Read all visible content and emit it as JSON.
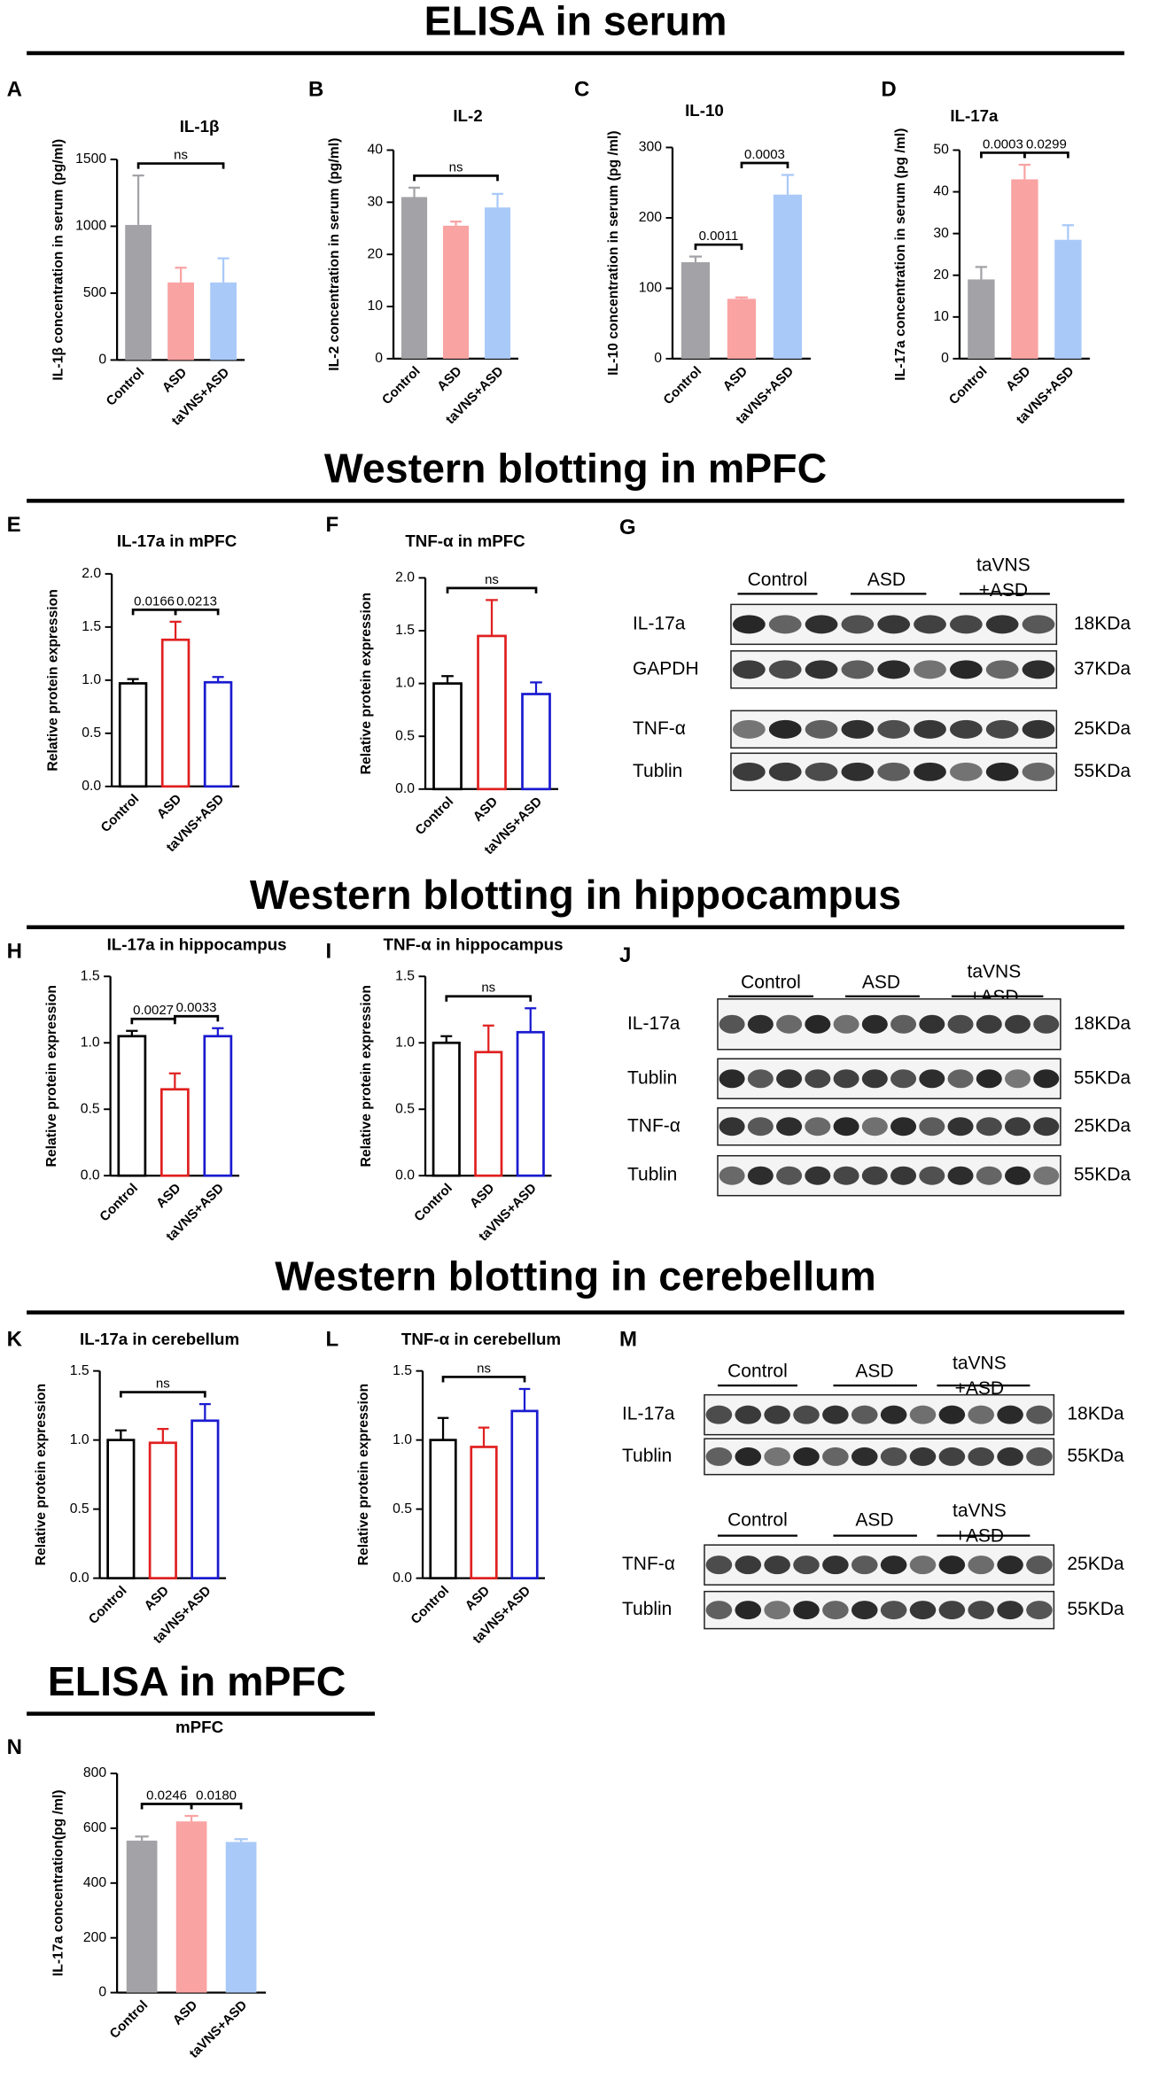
{
  "sections": [
    "ELISA in serum",
    "Western blotting in mPFC",
    "Western blotting in hippocampus",
    "Western blotting in cerebellum",
    "ELISA in mPFC"
  ],
  "chart_data": [
    {
      "type": "bar",
      "letter": "A",
      "title": "IL-1β",
      "y_label": "IL-1β concentration in serum (pg/ml)",
      "style": "filled",
      "categories": [
        "Control",
        "ASD",
        "taVNS+ASD"
      ],
      "values": [
        1010,
        580,
        580
      ],
      "errors": [
        370,
        110,
        180
      ],
      "colors": [
        "#a3a3a7",
        "#f9a3a3",
        "#a9c9f8"
      ],
      "ylim": [
        0,
        1500
      ],
      "yticks": [
        0,
        500,
        1000,
        1500
      ],
      "comparisons": [
        {
          "from": 0,
          "to": 2,
          "label": "ns"
        }
      ]
    },
    {
      "type": "bar",
      "letter": "B",
      "title": "IL-2",
      "y_label": "IL-2 concentration in serum (pg/ml)",
      "style": "filled",
      "categories": [
        "Control",
        "ASD",
        "taVNS+ASD"
      ],
      "values": [
        31,
        25.5,
        29
      ],
      "errors": [
        1.8,
        0.8,
        2.6
      ],
      "colors": [
        "#a3a3a7",
        "#f9a3a3",
        "#a9c9f8"
      ],
      "ylim": [
        0,
        40
      ],
      "yticks": [
        0,
        10,
        20,
        30,
        40
      ],
      "comparisons": [
        {
          "from": 0,
          "to": 2,
          "label": "ns"
        }
      ]
    },
    {
      "type": "bar",
      "letter": "C",
      "title": "IL-10",
      "y_label": "IL-10 concentration in serum (pg /ml)",
      "style": "filled",
      "categories": [
        "Control",
        "ASD",
        "taVNS+ASD"
      ],
      "values": [
        137,
        85,
        233
      ],
      "errors": [
        8,
        2,
        28
      ],
      "colors": [
        "#a3a3a7",
        "#f9a3a3",
        "#a9c9f8"
      ],
      "ylim": [
        0,
        300
      ],
      "yticks": [
        0,
        100,
        200,
        300
      ],
      "comparisons": [
        {
          "from": 0,
          "to": 1,
          "label": "0.0011"
        },
        {
          "from": 1,
          "to": 2,
          "label": "0.0003"
        }
      ]
    },
    {
      "type": "bar",
      "letter": "D",
      "title": "IL-17a",
      "y_label": "IL-17a concentration in serum (pg /ml)",
      "style": "filled",
      "categories": [
        "Control",
        "ASD",
        "taVNS+ASD"
      ],
      "values": [
        19,
        43,
        28.5
      ],
      "errors": [
        3,
        3.5,
        3.5
      ],
      "colors": [
        "#a3a3a7",
        "#f9a3a3",
        "#a9c9f8"
      ],
      "ylim": [
        0,
        50
      ],
      "yticks": [
        0,
        10,
        20,
        30,
        40,
        50
      ],
      "comparisons": [
        {
          "from": 0,
          "to": 1,
          "label": "0.0003"
        },
        {
          "from": 1,
          "to": 2,
          "label": "0.0299"
        }
      ]
    },
    {
      "type": "bar",
      "letter": "E",
      "title": "IL-17a in mPFC",
      "y_label": "Relative protein expression",
      "style": "outline",
      "categories": [
        "Control",
        "ASD",
        "taVNS+ASD"
      ],
      "values": [
        0.97,
        1.38,
        0.98
      ],
      "errors": [
        0.04,
        0.17,
        0.05
      ],
      "colors": [
        "#000000",
        "#e02020",
        "#1a1ad0"
      ],
      "ylim": [
        0,
        2
      ],
      "yticks": [
        {
          "value": 0,
          "label": "0.0"
        },
        0.5,
        {
          "value": 1,
          "label": "1.0"
        },
        1.5,
        {
          "value": 2,
          "label": "2.0"
        }
      ],
      "comparisons": [
        {
          "from": 0,
          "to": 1,
          "label": "0.0166"
        },
        {
          "from": 1,
          "to": 2,
          "label": "0.0213"
        }
      ]
    },
    {
      "type": "bar",
      "letter": "F",
      "title": "TNF-α in mPFC",
      "y_label": "Relative protein expression",
      "style": "outline",
      "categories": [
        "Control",
        "ASD",
        "taVNS+ASD"
      ],
      "values": [
        1.0,
        1.45,
        0.9
      ],
      "errors": [
        0.07,
        0.34,
        0.11
      ],
      "colors": [
        "#000000",
        "#e02020",
        "#1a1ad0"
      ],
      "ylim": [
        0,
        2
      ],
      "yticks": [
        {
          "value": 0,
          "label": "0.0"
        },
        0.5,
        {
          "value": 1,
          "label": "1.0"
        },
        1.5,
        {
          "value": 2,
          "label": "2.0"
        }
      ],
      "comparisons": [
        {
          "from": 0,
          "to": 2,
          "label": "ns"
        }
      ]
    },
    {
      "type": "bar",
      "letter": "H",
      "title": "IL-17a in hippocampus",
      "y_label": "Relative protein expression",
      "style": "outline",
      "categories": [
        "Control",
        "ASD",
        "taVNS+ASD"
      ],
      "values": [
        1.05,
        0.65,
        1.05
      ],
      "errors": [
        0.04,
        0.12,
        0.06
      ],
      "colors": [
        "#000000",
        "#e02020",
        "#1a1ad0"
      ],
      "ylim": [
        0,
        1.5
      ],
      "yticks": [
        {
          "value": 0,
          "label": "0.0"
        },
        0.5,
        {
          "value": 1,
          "label": "1.0"
        },
        1.5
      ],
      "comparisons": [
        {
          "from": 0,
          "to": 1,
          "label": "0.0027"
        },
        {
          "from": 1,
          "to": 2,
          "label": "0.0033"
        }
      ]
    },
    {
      "type": "bar",
      "letter": "I",
      "title": "TNF-α in hippocampus",
      "y_label": "Relative protein expression",
      "style": "outline",
      "categories": [
        "Control",
        "ASD",
        "taVNS+ASD"
      ],
      "values": [
        1.0,
        0.93,
        1.08
      ],
      "errors": [
        0.05,
        0.2,
        0.18
      ],
      "colors": [
        "#000000",
        "#e02020",
        "#1a1ad0"
      ],
      "ylim": [
        0,
        1.5
      ],
      "yticks": [
        {
          "value": 0,
          "label": "0.0"
        },
        0.5,
        {
          "value": 1,
          "label": "1.0"
        },
        1.5
      ],
      "comparisons": [
        {
          "from": 0,
          "to": 2,
          "label": "ns"
        }
      ]
    },
    {
      "type": "bar",
      "letter": "K",
      "title": "IL-17a in cerebellum",
      "y_label": "Relative protein expression",
      "style": "outline",
      "categories": [
        "Control",
        "ASD",
        "taVNS+ASD"
      ],
      "values": [
        1.0,
        0.98,
        1.14
      ],
      "errors": [
        0.07,
        0.1,
        0.12
      ],
      "colors": [
        "#000000",
        "#e02020",
        "#1a1ad0"
      ],
      "ylim": [
        0,
        1.5
      ],
      "yticks": [
        {
          "value": 0,
          "label": "0.0"
        },
        0.5,
        {
          "value": 1,
          "label": "1.0"
        },
        1.5
      ],
      "comparisons": [
        {
          "from": 0,
          "to": 2,
          "label": "ns"
        }
      ]
    },
    {
      "type": "bar",
      "letter": "L",
      "title": "TNF-α in cerebellum",
      "y_label": "Relative protein expression",
      "style": "outline",
      "categories": [
        "Control",
        "ASD",
        "taVNS+ASD"
      ],
      "values": [
        1.0,
        0.95,
        1.21
      ],
      "errors": [
        0.16,
        0.14,
        0.16
      ],
      "colors": [
        "#000000",
        "#e02020",
        "#1a1ad0"
      ],
      "ylim": [
        0,
        1.5
      ],
      "yticks": [
        {
          "value": 0,
          "label": "0.0"
        },
        0.5,
        {
          "value": 1,
          "label": "1.0"
        },
        1.5
      ],
      "comparisons": [
        {
          "from": 0,
          "to": 2,
          "label": "ns"
        }
      ]
    },
    {
      "type": "bar",
      "letter": "N",
      "title": "mPFC",
      "y_label": "IL-17a concentration(pg /ml)",
      "style": "filled",
      "categories": [
        "Control",
        "ASD",
        "taVNS+ASD"
      ],
      "values": [
        555,
        625,
        550
      ],
      "errors": [
        15,
        20,
        10
      ],
      "colors": [
        "#a3a3a7",
        "#f9a3a3",
        "#a9c9f8"
      ],
      "ylim": [
        0,
        800
      ],
      "yticks": [
        0,
        200,
        400,
        600,
        800
      ],
      "comparisons": [
        {
          "from": 0,
          "to": 1,
          "label": "0.0246"
        },
        {
          "from": 1,
          "to": 2,
          "label": "0.0180"
        }
      ]
    }
  ],
  "blots": [
    {
      "letter": "G",
      "blocks": [
        {
          "groups": [
            [
              "Control"
            ],
            [
              "ASD"
            ],
            [
              "taVNS",
              "+ASD"
            ]
          ],
          "rows": [
            {
              "protein": "IL-17a",
              "size": "18KDa"
            },
            {
              "protein": "GAPDH",
              "size": "37KDa"
            },
            {
              "protein": "TNF-α",
              "size": "25KDa"
            },
            {
              "protein": "Tublin",
              "size": "55KDa"
            }
          ]
        }
      ]
    },
    {
      "letter": "J",
      "blocks": [
        {
          "groups": [
            [
              "Control"
            ],
            [
              "ASD"
            ],
            [
              "taVNS",
              "+ASD"
            ]
          ],
          "rows": [
            {
              "protein": "IL-17a",
              "size": "18KDa"
            },
            {
              "protein": "Tublin",
              "size": "55KDa"
            },
            {
              "protein": "TNF-α",
              "size": "25KDa"
            },
            {
              "protein": "Tublin",
              "size": "55KDa"
            }
          ]
        }
      ]
    },
    {
      "letter": "M",
      "blocks": [
        {
          "groups": [
            [
              "Control"
            ],
            [
              "ASD"
            ],
            [
              "taVNS",
              "+ASD"
            ]
          ],
          "rows": [
            {
              "protein": "IL-17a",
              "size": "18KDa"
            },
            {
              "protein": "Tublin",
              "size": "55KDa"
            }
          ]
        },
        {
          "groups": [
            [
              "Control"
            ],
            [
              "ASD"
            ],
            [
              "taVNS",
              "+ASD"
            ]
          ],
          "rows": [
            {
              "protein": "TNF-α",
              "size": "25KDa"
            },
            {
              "protein": "Tublin",
              "size": "55KDa"
            }
          ]
        }
      ]
    }
  ]
}
